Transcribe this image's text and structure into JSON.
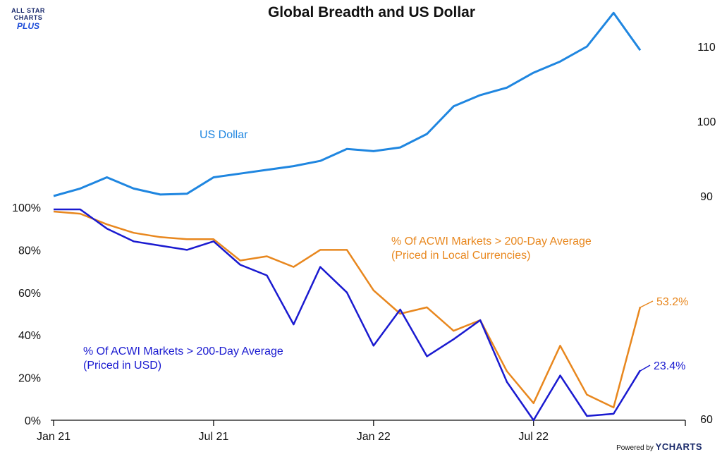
{
  "brand": {
    "logo_line1": "ALL STAR",
    "logo_line2": "CHARTS",
    "logo_line3": "PLUS",
    "powered_by": "Powered by",
    "ycharts": "YCHARTS"
  },
  "colors": {
    "usd": "#1f86e0",
    "local": "#e8871e",
    "usd_breadth": "#1a1ad0",
    "axis": "#111111"
  },
  "chart_data": {
    "type": "line",
    "title": "Global Breadth and US Dollar",
    "x_tick_labels": [
      "Jan 21",
      "Jul 21",
      "Jan 22",
      "Jul 22"
    ],
    "x_ticks": [
      "2021-01",
      "2021-07",
      "2022-01",
      "2022-07"
    ],
    "left_axis": {
      "ticks": [
        "0%",
        "20%",
        "40%",
        "60%",
        "80%",
        "100%"
      ],
      "range": [
        0,
        100
      ]
    },
    "right_axis": {
      "ticks": [
        "60",
        "90",
        "100",
        "110"
      ],
      "range": [
        60,
        118
      ]
    },
    "series": [
      {
        "name": "US Dollar",
        "axis": "right",
        "label": "US Dollar",
        "x": [
          "2021-01",
          "2021-02",
          "2021-03",
          "2021-04",
          "2021-05",
          "2021-06",
          "2021-07",
          "2021-08",
          "2021-09",
          "2021-10",
          "2021-11",
          "2021-12",
          "2022-01",
          "2022-02",
          "2022-03",
          "2022-04",
          "2022-05",
          "2022-06",
          "2022-07",
          "2022-08",
          "2022-09",
          "2022-10",
          "2022-11"
        ],
        "values": [
          90.0,
          91.0,
          92.5,
          91.0,
          90.2,
          90.3,
          92.5,
          93.0,
          93.5,
          94.0,
          94.7,
          96.3,
          96.0,
          96.5,
          98.3,
          102.0,
          103.5,
          104.5,
          106.5,
          108.0,
          110.0,
          114.5,
          109.5
        ]
      },
      {
        "name": "% Of ACWI Markets > 200-Day Average (Priced in Local Currencies)",
        "axis": "left",
        "label_line1": "% Of ACWI Markets > 200-Day Average",
        "label_line2": "(Priced in Local Currencies)",
        "end_label": "53.2%",
        "x": [
          "2021-01",
          "2021-02",
          "2021-03",
          "2021-04",
          "2021-05",
          "2021-06",
          "2021-07",
          "2021-08",
          "2021-09",
          "2021-10",
          "2021-11",
          "2021-12",
          "2022-01",
          "2022-02",
          "2022-03",
          "2022-04",
          "2022-05",
          "2022-06",
          "2022-07",
          "2022-08",
          "2022-09",
          "2022-10",
          "2022-11"
        ],
        "values": [
          98,
          97,
          92,
          88,
          86,
          85,
          85,
          75,
          77,
          72,
          80,
          80,
          61,
          50,
          53,
          42,
          47,
          23,
          8,
          35,
          12,
          6,
          53.2
        ]
      },
      {
        "name": "% Of ACWI Markets > 200-Day Average (Priced in USD)",
        "axis": "left",
        "label_line1": "% Of ACWI Markets > 200-Day Average",
        "label_line2": "(Priced in USD)",
        "end_label": "23.4%",
        "x": [
          "2021-01",
          "2021-02",
          "2021-03",
          "2021-04",
          "2021-05",
          "2021-06",
          "2021-07",
          "2021-08",
          "2021-09",
          "2021-10",
          "2021-11",
          "2021-12",
          "2022-01",
          "2022-02",
          "2022-03",
          "2022-04",
          "2022-05",
          "2022-06",
          "2022-07",
          "2022-08",
          "2022-09",
          "2022-10",
          "2022-11"
        ],
        "values": [
          99,
          99,
          90,
          84,
          82,
          80,
          84,
          73,
          68,
          45,
          72,
          60,
          35,
          52,
          30,
          38,
          47,
          18,
          0,
          21,
          2,
          3,
          23.4
        ]
      }
    ]
  }
}
